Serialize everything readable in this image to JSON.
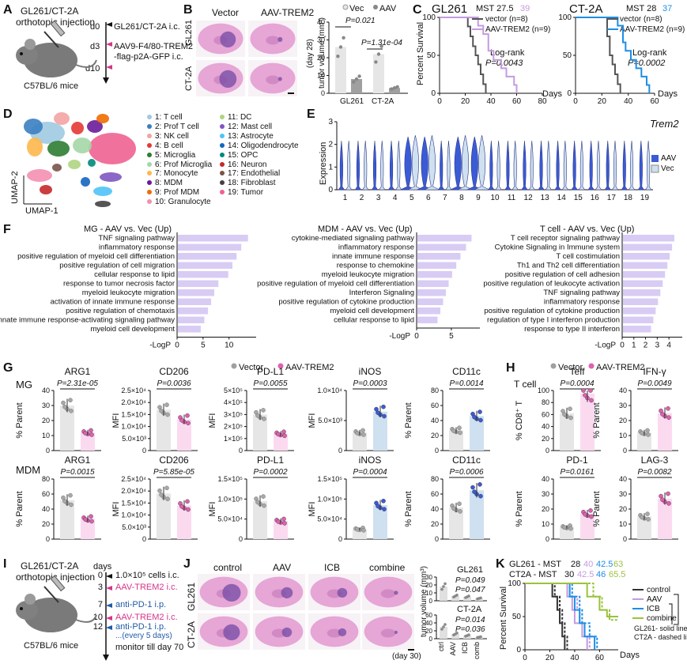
{
  "colors": {
    "aav_blue": "#3b5bd6",
    "vec_lightblue": "#cfe0f0",
    "bar_lavender": "#d8ccf5",
    "pink": "#e060b0",
    "light_pink": "#fbdaf0",
    "gray": "#a0a0a0",
    "light_gray": "#e6e6e6",
    "km_purple": "#c59be0",
    "km_blue": "#1e8ee6",
    "km_green": "#9ac23c"
  },
  "panel_letters": [
    "A",
    "B",
    "C",
    "D",
    "E",
    "F",
    "G",
    "H",
    "I",
    "J",
    "K"
  ],
  "panelA": {
    "model": "GL261/CT-2A",
    "model2": "orthotopic injection",
    "mouse": "C57BL/6 mice",
    "steps": [
      {
        "day": "d0",
        "text": "GL261/CT-2A i.c."
      },
      {
        "day": "d3",
        "text": "AAV9-F4/80-TREM2"
      },
      {
        "day": "",
        "text": "-flag-p2A-GFP i.c."
      },
      {
        "day": "d10",
        "text": ""
      }
    ]
  },
  "panelB": {
    "col_labels": [
      "Vector",
      "AAV-TREM2"
    ],
    "row_labels": [
      "GL261",
      "CT-2A"
    ],
    "legend": [
      "Vec",
      "AAV"
    ],
    "ylabel": "tumor volume (mm³)",
    "side_label": "(day 28)",
    "pvalues": [
      "P=0.021",
      "P=1.31e-04"
    ],
    "yticks": [
      "0",
      "10",
      "20",
      "30",
      "40"
    ]
  },
  "panelC": {
    "left": {
      "title": "GL261",
      "mst_label": "MST 27.5",
      "mst2": "39",
      "legend": [
        "vector (n=8)",
        "AAV-TREM2 (n=9)"
      ],
      "logrank": "Log-rank",
      "p": "P=0.0043"
    },
    "right": {
      "title": "CT-2A",
      "mst_label": "MST 28",
      "mst2": "37",
      "legend": [
        "vector (n=8)",
        "AAV-TREM2 (n=9)"
      ],
      "logrank": "Log-rank",
      "p": "P=0.0002"
    },
    "ylabel": "Percent Survival",
    "yticks": [
      "0",
      "50",
      "100"
    ],
    "xticks": [
      "0",
      "20",
      "40",
      "60",
      "80"
    ],
    "xticks_right": [
      "0",
      "20",
      "40",
      "60"
    ],
    "xunit": "Days"
  },
  "panelD": {
    "axis_x": "UMAP-1",
    "axis_y": "UMAP-2",
    "clusters_left": [
      "1: T cell",
      "2: Prof T cell",
      "3: NK cell",
      "4: B cell",
      "5: Microglia",
      "6: Prof Microglia",
      "7: Monocyte",
      "8: MDM",
      "9: Prof MDM",
      "10: Granulocyte"
    ],
    "clusters_right": [
      "11: DC",
      "12: Mast cell",
      "13: Astrocyte",
      "14: Oligodendrocyte",
      "15: OPC",
      "16: Neuron",
      "17: Endothelial",
      "18: Fibroblast",
      "19: Tumor"
    ],
    "cluster_colors_left": [
      "#9ecae1",
      "#3a7fc1",
      "#f4a3a3",
      "#e53935",
      "#2e7d32",
      "#a5d6a7",
      "#ffb74d",
      "#6a1b9a",
      "#ef6c00",
      "#f48fb1"
    ],
    "cluster_colors_right": [
      "#aed581",
      "#7e57c2",
      "#4fc3f7",
      "#1565c0",
      "#00897b",
      "#c62828",
      "#795548",
      "#424242",
      "#f06292"
    ]
  },
  "panelE": {
    "gene": "Trem2",
    "ylabel": "Expression",
    "legend": [
      "AAV",
      "Vec"
    ],
    "yticks": [
      "0",
      "1",
      "2",
      "3"
    ],
    "clusters": [
      "1",
      "2",
      "3",
      "4",
      "5",
      "6",
      "7",
      "8",
      "9",
      "10",
      "11",
      "12",
      "13",
      "14",
      "15",
      "16",
      "17",
      "18",
      "19"
    ]
  },
  "panelF": {
    "xlabel": "-LogP",
    "charts": [
      {
        "title": "MG - AAV vs. Vec (Up)",
        "terms": [
          "TNF signaling pathway",
          "inflammatory response",
          "positive regulation of myeloid cell differentiation",
          "positive regulation of cell migration",
          "cellular response to lipid",
          "response to tumor necrosis factor",
          "myeloid leukocyte migration",
          "activation of innate immune response",
          "positive regulation of chemotaxis",
          "innate immune response-activating signaling pathway",
          "myeloid cell development"
        ],
        "values": [
          13.5,
          12.2,
          11.3,
          10.5,
          9.7,
          7.8,
          7.0,
          6.4,
          5.8,
          5.1,
          4.4
        ],
        "xticks": [
          "0",
          "5",
          "10"
        ],
        "xmax": 14
      },
      {
        "title": "MDM - AAV vs. Vec (Up)",
        "terms": [
          "cytokine-mediated signaling pathway",
          "inflammatory response",
          "innate immune response",
          "response to chemokine",
          "myeloid leukocyte migration",
          "positive regulation of myeloid cell differentiation",
          "Interferon Signaling",
          "positive regulation of cytokine production",
          "myeloid cell development",
          "cellular response to lipid"
        ],
        "values": [
          7.8,
          7.0,
          6.2,
          5.6,
          5.0,
          4.5,
          4.1,
          3.7,
          3.3,
          2.9
        ],
        "xticks": [
          "0",
          "5"
        ],
        "xmax": 8.2
      },
      {
        "title": "T cell - AAV vs. Vec (Up)",
        "terms": [
          "T cell receptor signaling pathway",
          "Cytokine Signaling in Immune system",
          "T cell costimulation",
          "Th1 and Th2 cell differentiation",
          "positive regulation of cell adhesion",
          "positive regulation of leukocyte activation",
          "TNF signaling pathway",
          "inflammatory response",
          "positive regulation of cytokine production",
          "regulation of type I interferon production",
          "response to type II interferon"
        ],
        "values": [
          4.4,
          4.2,
          4.0,
          3.8,
          3.6,
          3.4,
          3.2,
          3.0,
          2.8,
          2.6,
          2.4
        ],
        "xticks": [
          "0",
          "1",
          "2",
          "3",
          "4"
        ],
        "xmax": 4.6
      }
    ]
  },
  "panelG": {
    "legend": [
      "Vector",
      "AAV-TREM2"
    ],
    "row_labels": [
      "MG",
      "MDM"
    ],
    "rows": [
      [
        {
          "title": "ARG1",
          "p": "P=2.31e-05",
          "ylabel": "% Parent",
          "yticks": [
            "0",
            "10",
            "20",
            "30",
            "40"
          ],
          "vec": 30,
          "aav": 12,
          "ymax": 40,
          "hl": "pink"
        },
        {
          "title": "CD206",
          "p": "P=0.0036",
          "ylabel": "MFI",
          "yticks": [
            "0",
            "5.0×10³",
            "1.0×10⁴",
            "1.5×10⁴",
            "2.0×10⁴",
            "2.5×10⁴"
          ],
          "vec": 1.7,
          "aav": 1.3,
          "ymax": 2.5,
          "hl": "pink"
        },
        {
          "title": "PD-L1",
          "p": "P=0.0055",
          "ylabel": "MFI",
          "yticks": [
            "0",
            "1×10⁵",
            "2×10⁵",
            "3×10⁵",
            "4×10⁵",
            "5×10⁵"
          ],
          "vec": 3.0,
          "aav": 1.4,
          "ymax": 5,
          "hl": "pink"
        },
        {
          "title": "iNOS",
          "p": "P=0.0003",
          "ylabel": "MFI",
          "yticks": [
            "0",
            "5.0×10³",
            "1.0×10⁴"
          ],
          "vec": 3.0,
          "aav": 6.5,
          "ymax": 10,
          "hl": "blue"
        },
        {
          "title": "CD11c",
          "p": "P=0.0014",
          "ylabel": "% Parent",
          "yticks": [
            "0",
            "20",
            "40",
            "60",
            "80"
          ],
          "vec": 27,
          "aav": 46,
          "ymax": 80,
          "hl": "blue"
        }
      ],
      [
        {
          "title": "ARG1",
          "p": "P=0.0015",
          "ylabel": "% Parent",
          "yticks": [
            "0",
            "20",
            "40",
            "60",
            "80"
          ],
          "vec": 52,
          "aav": 27,
          "ymax": 80,
          "hl": "pink"
        },
        {
          "title": "CD206",
          "p": "P=5.85e-05",
          "ylabel": "MFI",
          "yticks": [
            "0",
            "5.0×10³",
            "1.0×10⁴",
            "1.5×10⁴",
            "2.0×10⁴",
            "2.5×10⁴"
          ],
          "vec": 1.9,
          "aav": 1.4,
          "ymax": 2.5,
          "hl": "pink"
        },
        {
          "title": "PD-L1",
          "p": "P=0.0002",
          "ylabel": "MFI",
          "yticks": [
            "0",
            "5.0×10⁴",
            "1.0×10⁵",
            "1.5×10⁵"
          ],
          "vec": 0.95,
          "aav": 0.45,
          "ymax": 1.5,
          "hl": "pink"
        },
        {
          "title": "iNOS",
          "p": "P=0.0004",
          "ylabel": "MFI",
          "yticks": [
            "0",
            "5.0×10⁴",
            "1.0×10⁵",
            "1.5×10⁵"
          ],
          "vec": 0.25,
          "aav": 0.85,
          "ymax": 1.5,
          "hl": "blue"
        },
        {
          "title": "CD11c",
          "p": "P=0.0006",
          "ylabel": "% Parent",
          "yticks": [
            "0",
            "20",
            "40",
            "60",
            "80"
          ],
          "vec": 42,
          "aav": 65,
          "ymax": 80,
          "hl": "blue"
        }
      ]
    ]
  },
  "panelH": {
    "legend": [
      "Vector",
      "AAV-TREM2"
    ],
    "row_label": "T cell",
    "plots": [
      {
        "title": "Teff",
        "p": "P=0.0004",
        "ylabel": "% CD8⁺ T",
        "yticks": [
          "0",
          "20",
          "40",
          "60",
          "80",
          "100"
        ],
        "vec": 62,
        "aav": 95,
        "ymax": 100,
        "hl": "pink"
      },
      {
        "title": "IFN-γ",
        "p": "P=0.0049",
        "ylabel": "% Parent",
        "yticks": [
          "0",
          "10",
          "20",
          "30",
          "40"
        ],
        "vec": 12,
        "aav": 25,
        "ymax": 40,
        "hl": "pink"
      },
      {
        "title": "PD-1",
        "p": "P=0.0161",
        "ylabel": "% Parent",
        "yticks": [
          "0",
          "10",
          "20",
          "30",
          "40"
        ],
        "vec": 8,
        "aav": 17,
        "ymax": 40,
        "hl": "pink"
      },
      {
        "title": "LAG-3",
        "p": "P=0.0082",
        "ylabel": "% Parent",
        "yticks": [
          "0",
          "10",
          "20",
          "30",
          "40"
        ],
        "vec": 15,
        "aav": 27,
        "ymax": 40,
        "hl": "pink"
      }
    ]
  },
  "panelI": {
    "model": "GL261/CT-2A",
    "model2": "orthotopic injection",
    "mouse": "C57BL/6 mice",
    "header": "days",
    "steps": [
      {
        "day": "0",
        "text": "1.0×10⁵ cells i.c."
      },
      {
        "day": "3",
        "text": "AAV-TREM2 i.c."
      },
      {
        "day": "7",
        "text": "anti-PD-1 i.p."
      },
      {
        "day": "10",
        "text": "AAV-TREM2 i.c."
      },
      {
        "day": "12",
        "text": "anti-PD-1 i.p."
      },
      {
        "day": "",
        "text": "...(every 5 days)"
      },
      {
        "day": "",
        "text": "monitor till day 70"
      }
    ]
  },
  "panelJ": {
    "col_labels": [
      "control",
      "AAV",
      "ICB",
      "combine"
    ],
    "row_labels": [
      "GL261",
      "CT-2A"
    ],
    "side_label": "(day 30)",
    "ylabel": "tumor volume (mm³)",
    "top_title": "GL261",
    "bottom_title": "CT-2A",
    "top_p": [
      "P=0.049",
      "P=0.047"
    ],
    "bottom_p": [
      "P=0.014",
      "P=0.036"
    ],
    "top_yticks": [
      "0",
      "10",
      "20",
      "30"
    ],
    "bottom_yticks": [
      "0",
      "20",
      "40",
      "60"
    ],
    "xcats": [
      "ctrl",
      "AAV",
      "ICB",
      "comb"
    ]
  },
  "panelK": {
    "line1_prefix": "GL261 - MST",
    "line1_values": [
      "28",
      "40",
      "42.5",
      "63"
    ],
    "line2_prefix": "CT2A - MST",
    "line2_values": [
      "30",
      "42.5",
      "46",
      "65.5"
    ],
    "legend": [
      "control",
      "AAV",
      "ICB",
      "combine"
    ],
    "note1": "GL261- solid line",
    "note2": "CT2A - dashed line",
    "ylabel": "Percent Survival",
    "yticks": [
      "0",
      "50",
      "100"
    ],
    "xticks": [
      "0",
      "20",
      "40",
      "60"
    ],
    "xunit": "Days"
  }
}
